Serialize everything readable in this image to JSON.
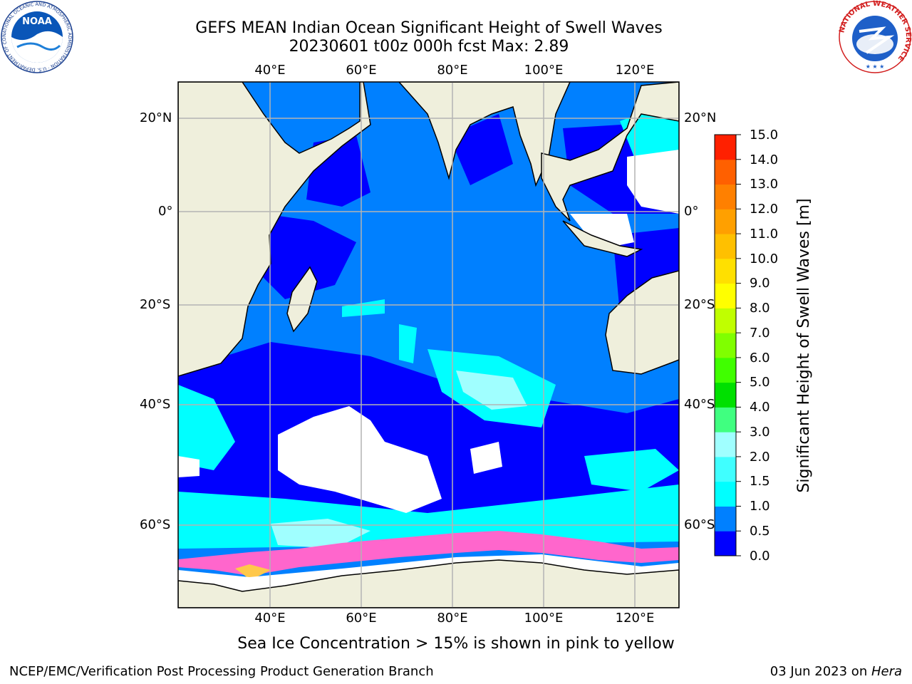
{
  "header": {
    "title_line1": "GEFS MEAN Indian Ocean Significant Height of Swell Waves",
    "title_line2": "20230601 t00z 000h fcst   Max: 2.89"
  },
  "logos": {
    "noaa_text": "NOAA",
    "noaa_ring": "NATIONAL OCEANIC AND ATMOSPHERIC ADMINISTRATION · U.S. DEPARTMENT OF COMMERCE",
    "nws_ring": "NATIONAL WEATHER SERVICE"
  },
  "map": {
    "lon_ticks": [
      "40°E",
      "60°E",
      "80°E",
      "100°E",
      "120°E"
    ],
    "lat_ticks": [
      "20°N",
      "0°",
      "20°S",
      "40°S",
      "60°S"
    ],
    "extent": {
      "lon": [
        20,
        130
      ],
      "lat": [
        -70,
        27
      ]
    },
    "colors": {
      "land": "#efefdc",
      "grid": "#b4b4b4",
      "ice": "#ff66cc"
    }
  },
  "colorbar": {
    "title": "Significant Height of Swell Waves [m]",
    "labels": [
      "15.0",
      "14.0",
      "13.0",
      "12.0",
      "11.0",
      "10.0",
      "9.0",
      "8.0",
      "7.0",
      "6.0",
      "5.0",
      "4.0",
      "3.0",
      "2.0",
      "1.5",
      "1.0",
      "0.5",
      "0.0"
    ],
    "colors": [
      "#0000ff",
      "#0080ff",
      "#00ffff",
      "#40ffff",
      "#a0ffff",
      "#40ff80",
      "#00e000",
      "#40ff00",
      "#80ff00",
      "#c0ff00",
      "#ffff00",
      "#ffe000",
      "#ffc000",
      "#ffa000",
      "#ff8000",
      "#ff6000",
      "#ff2000"
    ]
  },
  "note": "Sea Ice Concentration > 15% is shown in pink to yellow",
  "footer": {
    "left": "NCEP/EMC/Verification Post Processing Product Generation Branch",
    "right_date": "03 Jun 2023 on ",
    "right_host": "Hera"
  }
}
